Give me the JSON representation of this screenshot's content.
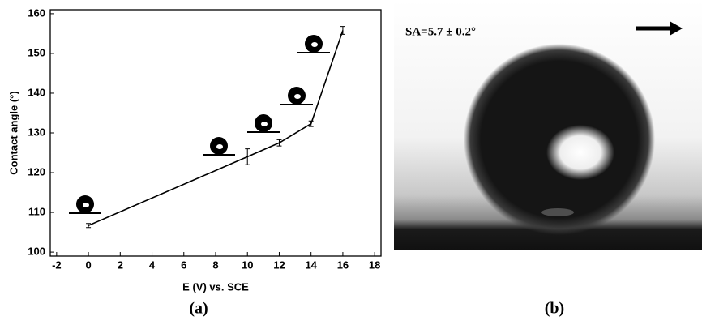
{
  "chart_data": {
    "type": "line",
    "panel_label": "(a)",
    "x_label": "E (V) vs. SCE",
    "y_label": "Contact angle (°)",
    "x": [
      0,
      10,
      12,
      14,
      16
    ],
    "series": [
      {
        "color": "#000000",
        "values": [
          106.7,
          124,
          127.5,
          132.3,
          155.8
        ],
        "errors": [
          0.5,
          2,
          0.8,
          0.7,
          1
        ]
      }
    ],
    "xlim": [
      -2.4,
      18.4
    ],
    "xticks": [
      -2,
      0,
      2,
      4,
      6,
      8,
      10,
      12,
      14,
      16,
      18
    ],
    "ylim": [
      99,
      161
    ],
    "yticks": [
      100,
      110,
      120,
      130,
      140,
      150,
      160
    ]
  },
  "image_panel": {
    "annotation": "SA=5.7 ± 0.2°",
    "label": "(b)"
  }
}
